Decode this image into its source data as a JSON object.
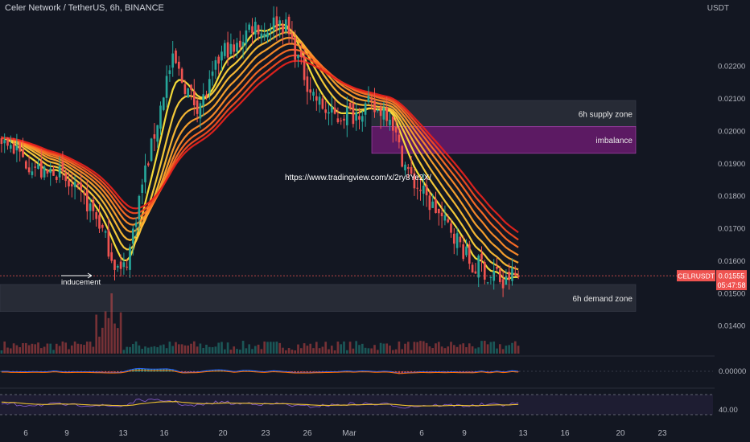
{
  "header": {
    "title": "Celer Network / TetherUS, 6h, BINANCE"
  },
  "price_axis": {
    "unit": "USDT"
  },
  "ticker": {
    "symbol": "CELRUSDT",
    "price": "0.01555",
    "countdown": "05:47:58"
  },
  "indicator_labels": {
    "macd_value": "0.00000",
    "rsi_value": "40.00"
  },
  "zones": [
    {
      "label": "6h supply zone",
      "kind": "supply",
      "y_low": 0.02013,
      "y_high": 0.02095,
      "color": "#2a2e39"
    },
    {
      "label": "imbalance",
      "kind": "imbalance",
      "y_low": 0.01932,
      "y_high": 0.02015,
      "color": "#6a1b6f"
    },
    {
      "label": "6h demand zone",
      "kind": "demand",
      "y_low": 0.01445,
      "y_high": 0.01528,
      "color": "#2a2e39"
    }
  ],
  "annotations": {
    "inducement": "inducement",
    "url": "https://www.tradingview.com/x/2ry8Ye2X/"
  },
  "colors": {
    "up": "#26a69a",
    "down": "#ef5350",
    "background": "#131722",
    "rsi_line": "#7e57c2",
    "rsi_ma": "#f0c330"
  },
  "chart_data": {
    "type": "candlestick",
    "title": "Celer Network / TetherUS, 6h, BINANCE",
    "xlabel": "",
    "ylabel": "USDT",
    "x_ticks": [
      "6",
      "9",
      "13",
      "16",
      "20",
      "23",
      "26",
      "Mar",
      "6",
      "9",
      "13",
      "16",
      "20",
      "23"
    ],
    "y_ticks": [
      "0.01400",
      "0.01500",
      "0.01600",
      "0.01700",
      "0.01800",
      "0.01900",
      "0.02000",
      "0.02100",
      "0.02200"
    ],
    "ylim": [
      0.01325,
      0.0235
    ],
    "last_price": 0.01555,
    "close_path": [
      0.0198,
      0.0196,
      0.0194,
      0.0191,
      0.019,
      0.0188,
      0.0186,
      0.0189,
      0.0186,
      0.0183,
      0.0181,
      0.0179,
      0.0176,
      0.0172,
      0.0166,
      0.016,
      0.0156,
      0.0162,
      0.0175,
      0.0186,
      0.0195,
      0.0205,
      0.0216,
      0.0222,
      0.0216,
      0.0212,
      0.0208,
      0.021,
      0.0215,
      0.0222,
      0.0226,
      0.0224,
      0.0228,
      0.0232,
      0.0233,
      0.023,
      0.0233,
      0.0234,
      0.0232,
      0.0226,
      0.022,
      0.0214,
      0.021,
      0.0207,
      0.0205,
      0.0204,
      0.0206,
      0.0205,
      0.0207,
      0.0208,
      0.0206,
      0.0207,
      0.0205,
      0.0195,
      0.0189,
      0.0184,
      0.0182,
      0.0178,
      0.0176,
      0.0172,
      0.017,
      0.0166,
      0.0162,
      0.0157,
      0.016,
      0.0154,
      0.0157,
      0.0152,
      0.0156,
      0.0155
    ],
    "series": [
      {
        "name": "",
        "kind": "ema_ribbon",
        "note": "eight moving averages shaded yellow to red"
      }
    ],
    "annotations": [
      "6h supply zone",
      "imbalance",
      "6h demand zone",
      "inducement"
    ],
    "indicators": {
      "macd": {
        "label": "0.00000"
      },
      "rsi": {
        "label": "40.00",
        "band": [
          30,
          70
        ]
      }
    },
    "grid": false,
    "legend": "none"
  }
}
